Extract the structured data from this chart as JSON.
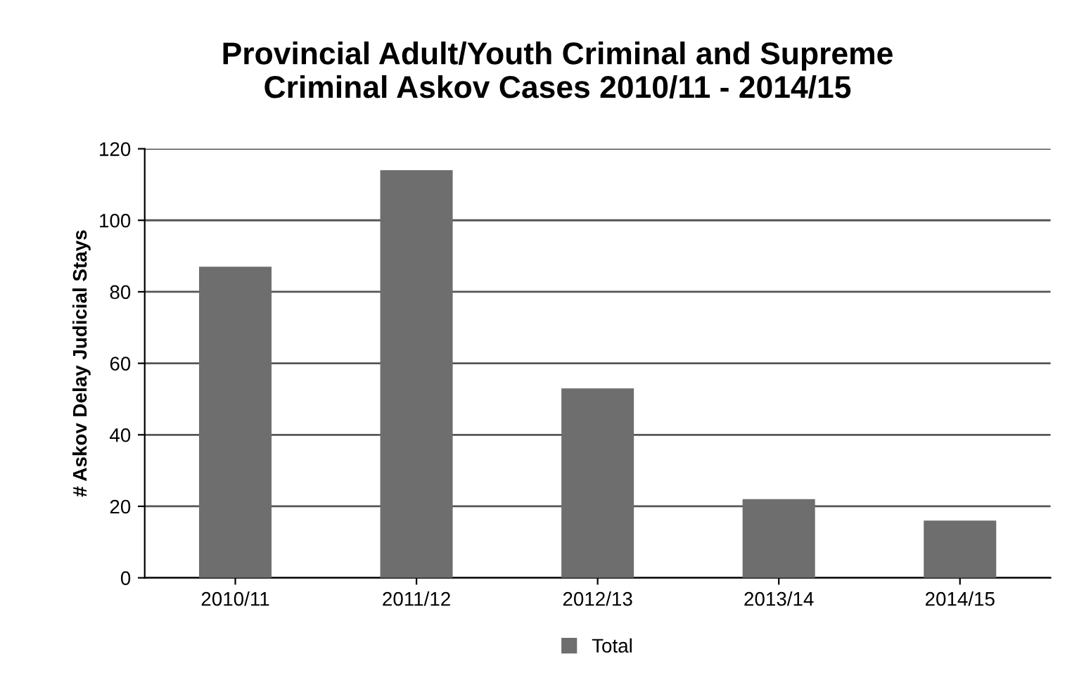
{
  "chart_data": {
    "type": "bar",
    "title": "Provincial Adult/Youth Criminal and Supreme\nCriminal Askov Cases 2010/11 - 2014/15",
    "ylabel": "# Askov Delay Judicial Stays",
    "categories": [
      "2010/11",
      "2011/12",
      "2012/13",
      "2013/14",
      "2014/15"
    ],
    "series": [
      {
        "name": "Total",
        "color": "#6e6e6e",
        "values": [
          87,
          114,
          53,
          22,
          16
        ]
      }
    ],
    "ylim": [
      0,
      120
    ],
    "yticks": [
      0,
      20,
      40,
      60,
      80,
      100,
      120
    ],
    "grid": "y",
    "legend": "bottom"
  }
}
